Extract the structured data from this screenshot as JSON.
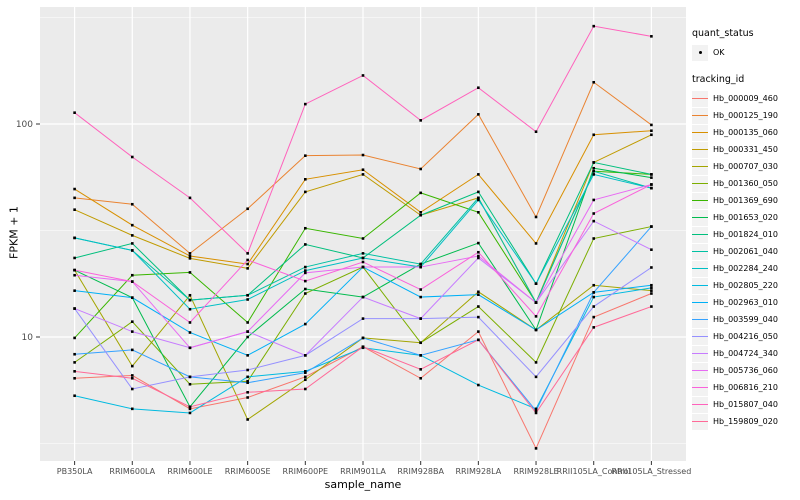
{
  "legend": {
    "quant_status_title": "quant_status",
    "quant_status_value": "OK",
    "tracking_id_title": "tracking_id"
  },
  "chart_data": {
    "type": "line",
    "title": "",
    "xlabel": "sample_name",
    "ylabel": "FPKM + 1",
    "y_scale": "log10",
    "y_ticks": [
      10,
      100
    ],
    "y_minor_ticks": [
      3.162,
      31.62,
      316.2
    ],
    "ylim": [
      2.7,
      360
    ],
    "grid": true,
    "legend_position": "right",
    "panel_background": "#EBEBEB",
    "gridline_color": "#FFFFFF",
    "point_color": "#000000",
    "axis_text_color": "#4D4D4D",
    "categories": [
      "PB350LA",
      "RRIM600LA",
      "RRIM600LE",
      "RRIM600SE",
      "RRIM600PE",
      "RRIM901LA",
      "RRIM928BA",
      "RRIM928LA",
      "RRIM928LE",
      "RRII105LA_Control",
      "RRII105LA_Stressed"
    ],
    "quant_status": "OK",
    "series": [
      {
        "name": "Hb_000009_460",
        "color": "#F8766D",
        "values": [
          6.4,
          6.6,
          4.6,
          5.2,
          6.5,
          9.0,
          6.4,
          10.6,
          3.0,
          12.4,
          16.0
        ]
      },
      {
        "name": "Hb_000125_190",
        "color": "#EA8331",
        "values": [
          45,
          42,
          24.7,
          40,
          71,
          71.5,
          61.5,
          111,
          36.6,
          157,
          99
        ]
      },
      {
        "name": "Hb_000135_060",
        "color": "#D89000",
        "values": [
          49.5,
          33.5,
          24,
          22,
          55,
          61,
          38.5,
          58,
          27.5,
          89,
          93
        ]
      },
      {
        "name": "Hb_000331_450",
        "color": "#C09B00",
        "values": [
          39.6,
          30,
          23.4,
          21,
          48,
          58,
          37.3,
          45,
          14.5,
          66,
          89
        ]
      },
      {
        "name": "Hb_000707_030",
        "color": "#A3A500",
        "values": [
          20.6,
          7.3,
          15.7,
          4.1,
          6.3,
          9.9,
          9.4,
          16.3,
          10.8,
          17.5,
          16.5
        ]
      },
      {
        "name": "Hb_001360_050",
        "color": "#7CAE00",
        "values": [
          7.6,
          11.8,
          6.0,
          6.2,
          16.0,
          21.3,
          9.4,
          13.9,
          7.6,
          29,
          33
        ]
      },
      {
        "name": "Hb_001369_690",
        "color": "#39B600",
        "values": [
          9.9,
          19.5,
          20.1,
          11.7,
          32.4,
          29,
          47.5,
          38.5,
          14.5,
          60,
          58
        ]
      },
      {
        "name": "Hb_001653_020",
        "color": "#00BB4E",
        "values": [
          20.6,
          15.3,
          4.7,
          10.0,
          16.8,
          15.4,
          22,
          27.6,
          10.8,
          62,
          56
        ]
      },
      {
        "name": "Hb_001824_010",
        "color": "#00BF7D",
        "values": [
          23.5,
          27.5,
          14.9,
          15.7,
          27.2,
          23.5,
          37.3,
          48,
          17.8,
          66,
          58
        ]
      },
      {
        "name": "Hb_002061_040",
        "color": "#00C1A3",
        "values": [
          29.2,
          25.5,
          14.9,
          15.7,
          21.3,
          24.7,
          22,
          45,
          14.5,
          60,
          50
        ]
      },
      {
        "name": "Hb_002284_240",
        "color": "#00BFC4",
        "values": [
          29.2,
          25.5,
          13.5,
          15.0,
          20.5,
          23.5,
          21.3,
          44,
          17.8,
          58,
          50
        ]
      },
      {
        "name": "Hb_002805_220",
        "color": "#00BAE0",
        "values": [
          5.3,
          4.6,
          4.4,
          6.5,
          6.9,
          8.9,
          8.2,
          5.95,
          4.6,
          15.4,
          17
        ]
      },
      {
        "name": "Hb_002963_010",
        "color": "#00B0F6",
        "values": [
          16.5,
          15.3,
          10.5,
          8.2,
          11.5,
          21.3,
          15.4,
          15.8,
          10.8,
          16.2,
          17.5
        ]
      },
      {
        "name": "Hb_003599_040",
        "color": "#35A2FF",
        "values": [
          8.3,
          8.7,
          6.5,
          6.1,
          6.8,
          9.9,
          8.2,
          9.7,
          4.5,
          16.2,
          33
        ]
      },
      {
        "name": "Hb_004216_050",
        "color": "#9590FF",
        "values": [
          13.6,
          5.7,
          6.5,
          7.0,
          8.2,
          12.2,
          12.2,
          12.4,
          6.5,
          13.9,
          21.2
        ]
      },
      {
        "name": "Hb_004724_340",
        "color": "#C77CFF",
        "values": [
          13.6,
          10.6,
          8.9,
          10.6,
          8.2,
          15.4,
          12.2,
          23.5,
          14.5,
          35,
          25.7
        ]
      },
      {
        "name": "Hb_005736_060",
        "color": "#E76BF3",
        "values": [
          19.5,
          18.2,
          8.9,
          10.6,
          20,
          21.3,
          21.3,
          24,
          14.5,
          44,
          52
        ]
      },
      {
        "name": "Hb_006816_210",
        "color": "#FA62DB",
        "values": [
          20.6,
          18.2,
          11.7,
          23,
          18.3,
          22.5,
          16.7,
          25,
          12.5,
          38,
          52
        ]
      },
      {
        "name": "Hb_015807_040",
        "color": "#FF62BC",
        "values": [
          113,
          70,
          45,
          24.7,
          124,
          169,
          104,
          148,
          92,
          288,
          258
        ]
      },
      {
        "name": "Hb_159809_020",
        "color": "#FF6A98",
        "values": [
          6.9,
          6.4,
          4.7,
          5.5,
          5.7,
          9.0,
          7.05,
          9.7,
          4.4,
          11.1,
          13.9
        ]
      }
    ]
  }
}
